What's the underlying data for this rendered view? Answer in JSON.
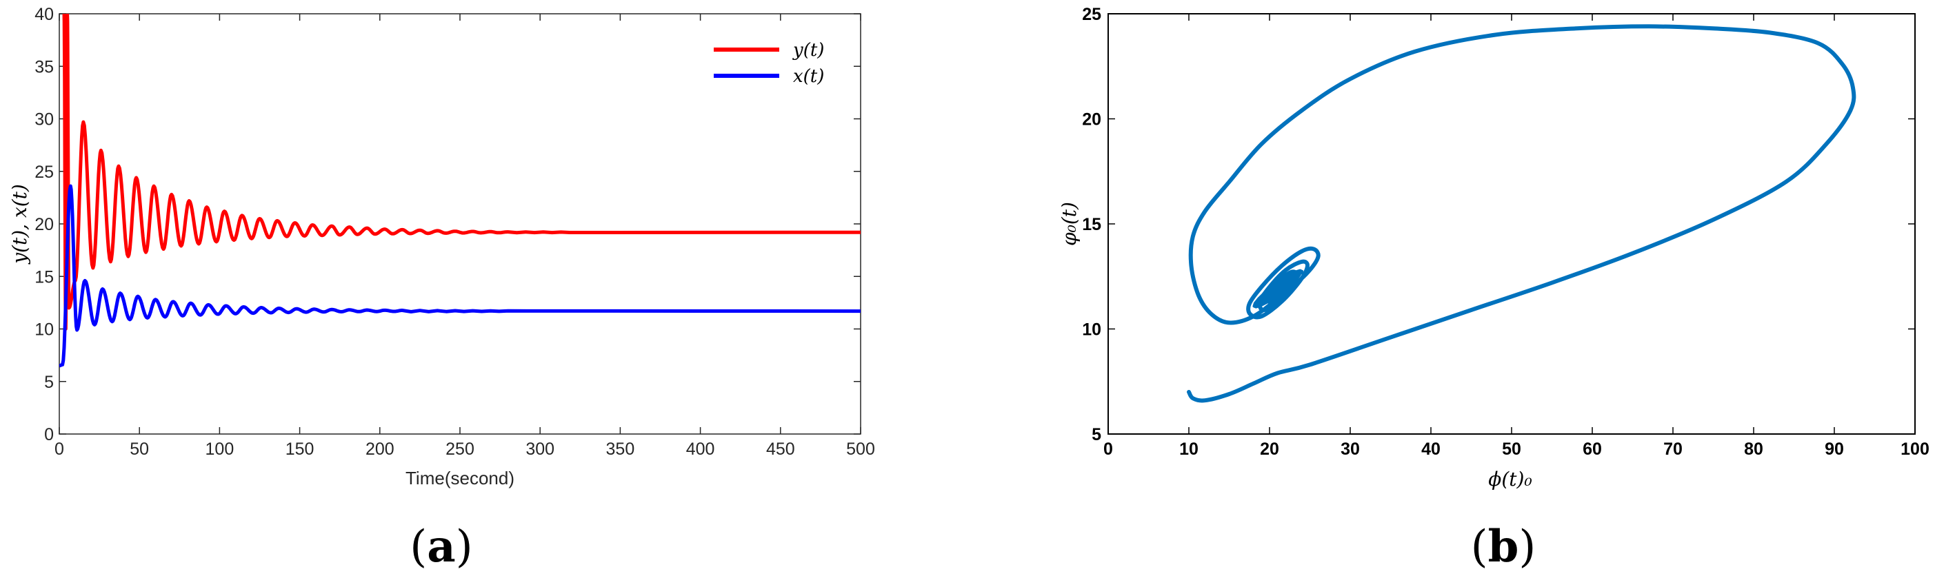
{
  "colors": {
    "y_series": "#ff0000",
    "x_series": "#0000ff",
    "phase_series": "#0072bd"
  },
  "chart_data": [
    {
      "type": "line",
      "caption_letter": "a",
      "xlabel": "Time(second)",
      "ylabel": "y(t), x(t)",
      "xlim": [
        0,
        500
      ],
      "ylim": [
        0,
        40
      ],
      "xticks": [
        "0",
        "50",
        "100",
        "150",
        "200",
        "250",
        "300",
        "350",
        "400",
        "450",
        "500"
      ],
      "yticks": [
        "0",
        "5",
        "10",
        "15",
        "20",
        "25",
        "30",
        "35",
        "40"
      ],
      "legend_position": "top-right",
      "series": [
        {
          "name": "y(t)",
          "color": "#ff0000",
          "equilibrium": 19.2,
          "peaks": [
            [
              3,
              40
            ],
            [
              5,
              40
            ],
            [
              15,
              29.7
            ],
            [
              26,
              27.0
            ],
            [
              37,
              25.5
            ],
            [
              48,
              24.4
            ],
            [
              59,
              23.6
            ],
            [
              70,
              22.8
            ],
            [
              81,
              22.2
            ],
            [
              92,
              21.6
            ],
            [
              103,
              21.2
            ],
            [
              114,
              20.8
            ],
            [
              125,
              20.5
            ],
            [
              136,
              20.3
            ],
            [
              147,
              20.1
            ],
            [
              158,
              19.9
            ],
            [
              170,
              19.8
            ],
            [
              181,
              19.7
            ],
            [
              192,
              19.6
            ],
            [
              203,
              19.5
            ],
            [
              214,
              19.45
            ],
            [
              225,
              19.4
            ],
            [
              236,
              19.35
            ],
            [
              247,
              19.3
            ],
            [
              258,
              19.28
            ],
            [
              269,
              19.26
            ],
            [
              280,
              19.24
            ]
          ],
          "troughs": [
            [
              4,
              10.0
            ],
            [
              6,
              12.0
            ],
            [
              10,
              14.6
            ],
            [
              21,
              15.8
            ],
            [
              32,
              16.4
            ],
            [
              43,
              16.9
            ],
            [
              54,
              17.3
            ],
            [
              65,
              17.6
            ],
            [
              76,
              17.9
            ],
            [
              87,
              18.1
            ],
            [
              98,
              18.3
            ],
            [
              109,
              18.45
            ],
            [
              120,
              18.6
            ],
            [
              131,
              18.7
            ],
            [
              142,
              18.8
            ],
            [
              153,
              18.85
            ],
            [
              164,
              18.9
            ],
            [
              175,
              18.95
            ],
            [
              186,
              19.0
            ],
            [
              197,
              19.03
            ],
            [
              208,
              19.06
            ],
            [
              219,
              19.08
            ],
            [
              230,
              19.1
            ],
            [
              241,
              19.12
            ],
            [
              252,
              19.14
            ],
            [
              263,
              19.15
            ],
            [
              274,
              19.16
            ]
          ]
        },
        {
          "name": "x(t)",
          "color": "#0000ff",
          "equilibrium": 11.7,
          "peaks": [
            [
              7,
              23.6
            ],
            [
              16,
              14.6
            ],
            [
              27,
              13.8
            ],
            [
              38,
              13.4
            ],
            [
              49,
              13.1
            ],
            [
              60,
              12.8
            ],
            [
              71,
              12.6
            ],
            [
              82,
              12.45
            ],
            [
              93,
              12.3
            ],
            [
              104,
              12.2
            ],
            [
              115,
              12.1
            ],
            [
              126,
              12.03
            ],
            [
              137,
              11.97
            ],
            [
              148,
              11.92
            ],
            [
              159,
              11.88
            ],
            [
              170,
              11.85
            ],
            [
              181,
              11.82
            ],
            [
              192,
              11.8
            ],
            [
              203,
              11.78
            ],
            [
              214,
              11.77
            ]
          ],
          "troughs": [
            [
              0,
              6.5
            ],
            [
              2,
              6.6
            ],
            [
              11,
              9.9
            ],
            [
              22,
              10.4
            ],
            [
              33,
              10.7
            ],
            [
              44,
              10.9
            ],
            [
              55,
              11.05
            ],
            [
              66,
              11.15
            ],
            [
              77,
              11.25
            ],
            [
              88,
              11.33
            ],
            [
              99,
              11.4
            ],
            [
              110,
              11.45
            ],
            [
              121,
              11.5
            ],
            [
              132,
              11.54
            ],
            [
              143,
              11.57
            ],
            [
              154,
              11.6
            ],
            [
              165,
              11.62
            ],
            [
              176,
              11.64
            ],
            [
              187,
              11.65
            ],
            [
              198,
              11.66
            ],
            [
              209,
              11.67
            ]
          ]
        }
      ]
    },
    {
      "type": "line",
      "caption_letter": "b",
      "xlabel": "ϕ(t)₀",
      "ylabel": "φ₀(t)",
      "xlim": [
        0,
        100
      ],
      "ylim": [
        5,
        25
      ],
      "xticks": [
        "0",
        "10",
        "20",
        "30",
        "40",
        "50",
        "60",
        "70",
        "80",
        "90",
        "100"
      ],
      "yticks": [
        "5",
        "10",
        "15",
        "20",
        "25"
      ],
      "series": [
        {
          "name": "",
          "color": "#0072bd",
          "trajectory": [
            [
              10,
              7.0
            ],
            [
              10.5,
              6.7
            ],
            [
              12,
              6.6
            ],
            [
              15,
              6.9
            ],
            [
              18,
              7.4
            ],
            [
              21,
              7.9
            ],
            [
              25,
              8.3
            ],
            [
              35,
              9.6
            ],
            [
              45,
              10.9
            ],
            [
              55,
              12.2
            ],
            [
              65,
              13.6
            ],
            [
              75,
              15.2
            ],
            [
              84,
              17.0
            ],
            [
              89,
              18.8
            ],
            [
              92,
              20.4
            ],
            [
              92.3,
              21.5
            ],
            [
              91,
              22.6
            ],
            [
              88,
              23.6
            ],
            [
              82,
              24.1
            ],
            [
              75,
              24.3
            ],
            [
              67,
              24.4
            ],
            [
              58,
              24.3
            ],
            [
              48,
              24.0
            ],
            [
              38,
              23.2
            ],
            [
              30,
              21.9
            ],
            [
              24,
              20.4
            ],
            [
              19,
              18.8
            ],
            [
              15,
              17.0
            ],
            [
              12,
              15.6
            ],
            [
              10.5,
              14.4
            ],
            [
              10.3,
              13.0
            ],
            [
              11.2,
              11.6
            ],
            [
              12.8,
              10.7
            ],
            [
              15,
              10.3
            ],
            [
              18,
              10.6
            ],
            [
              21.5,
              11.6
            ],
            [
              24.5,
              12.6
            ],
            [
              26,
              13.4
            ],
            [
              25.5,
              13.8
            ],
            [
              24,
              13.7
            ],
            [
              21.5,
              13.0
            ],
            [
              19,
              12.0
            ],
            [
              17.5,
              11.2
            ],
            [
              17.6,
              10.7
            ],
            [
              19,
              10.6
            ],
            [
              21.5,
              11.3
            ],
            [
              23.8,
              12.3
            ],
            [
              24.7,
              13.0
            ],
            [
              24,
              13.2
            ],
            [
              22,
              12.8
            ],
            [
              20,
              12.0
            ],
            [
              18.8,
              11.3
            ],
            [
              19.2,
              10.9
            ],
            [
              20.8,
              11.2
            ],
            [
              22.8,
              12.1
            ],
            [
              23.4,
              12.6
            ],
            [
              22.6,
              12.7
            ],
            [
              21,
              12.2
            ],
            [
              19.8,
              11.6
            ],
            [
              20,
              11.3
            ],
            [
              21.4,
              11.6
            ],
            [
              22.4,
              12.2
            ],
            [
              22.2,
              12.4
            ],
            [
              21,
              12.1
            ],
            [
              20.5,
              11.7
            ],
            [
              21.2,
              11.8
            ],
            [
              21.8,
              12.0
            ]
          ]
        }
      ]
    }
  ]
}
